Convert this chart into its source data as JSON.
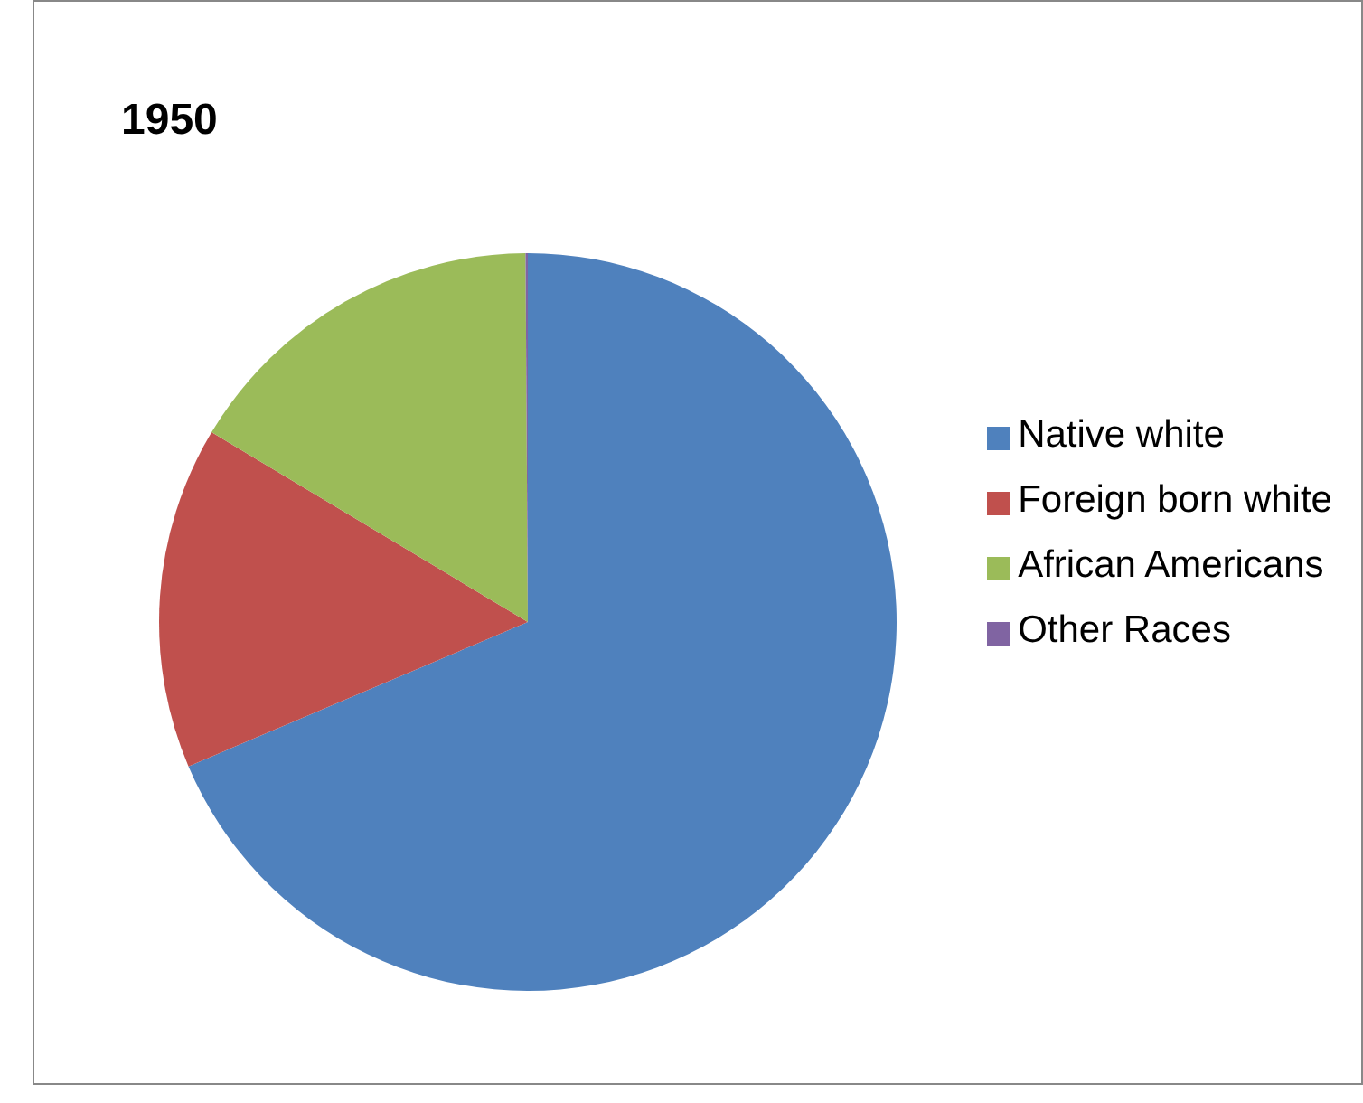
{
  "chart_data": {
    "type": "pie",
    "title": "1950",
    "categories": [
      "Native white",
      "Foreign born white",
      "African Americans",
      "Other Races"
    ],
    "values": [
      68.6,
      15.0,
      16.3,
      0.1
    ],
    "colors": [
      "#4f81bd",
      "#c0504d",
      "#9bbb59",
      "#8064a2"
    ],
    "legend": "right"
  }
}
